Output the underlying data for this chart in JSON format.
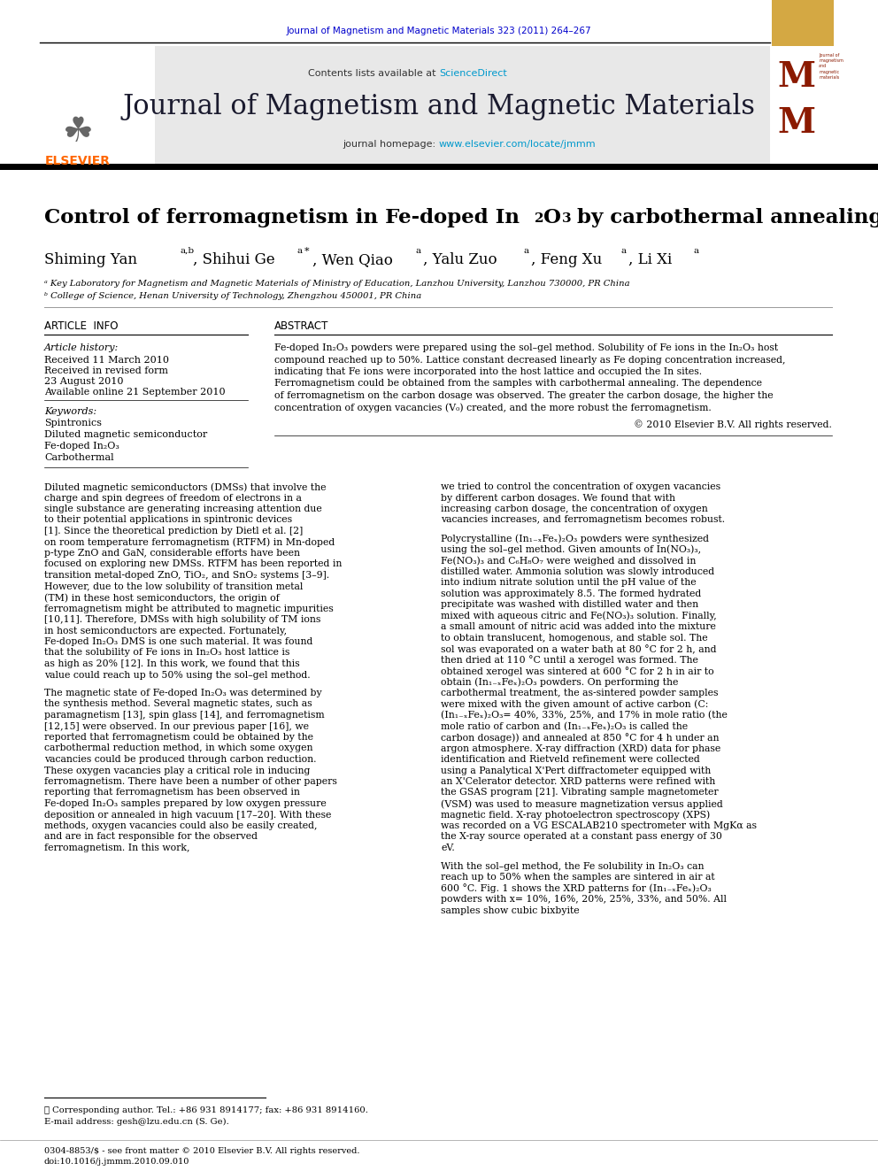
{
  "page_width": 9.92,
  "page_height": 13.23,
  "bg_color": "#ffffff",
  "header_journal_ref": "Journal of Magnetism and Magnetic Materials 323 (2011) 264–267",
  "header_journal_ref_color": "#0000cc",
  "contents_sciencedirect_color": "#0099cc",
  "journal_title": "Journal of Magnetism and Magnetic Materials",
  "journal_homepage_color": "#0099cc",
  "header_bg": "#e8e8e8",
  "article_info_title": "ARTICLE  INFO",
  "abstract_title": "ABSTRACT",
  "article_history_label": "Article history:",
  "received1": "Received 11 March 2010",
  "received_revised": "Received in revised form",
  "revised_date": "23 August 2010",
  "available": "Available online 21 September 2010",
  "keywords_label": "Keywords:",
  "kw1": "Spintronics",
  "kw2": "Diluted magnetic semiconductor",
  "kw3": "Fe-doped In₂O₃",
  "kw4": "Carbothermal",
  "copyright": "© 2010 Elsevier B.V. All rights reserved.",
  "affil_a": "ᵃ Key Laboratory for Magnetism and Magnetic Materials of Ministry of Education, Lanzhou University, Lanzhou 730000, PR China",
  "affil_b": "ᵇ College of Science, Henan University of Technology, Zhengzhou 450001, PR China",
  "footer_text1": "⋆ Corresponding author. Tel.: +86 931 8914177; fax: +86 931 8914160.",
  "footer_text2": "E-mail address: gesh@lzu.edu.cn (S. Ge).",
  "footer_text3": "0304-8853/$ - see front matter © 2010 Elsevier B.V. All rights reserved.",
  "footer_text4": "doi:10.1016/j.jmmm.2010.09.010",
  "elsevier_color": "#ff6600",
  "journal_logo_color": "#8b1a00",
  "journal_logo_bg": "#d4a843"
}
